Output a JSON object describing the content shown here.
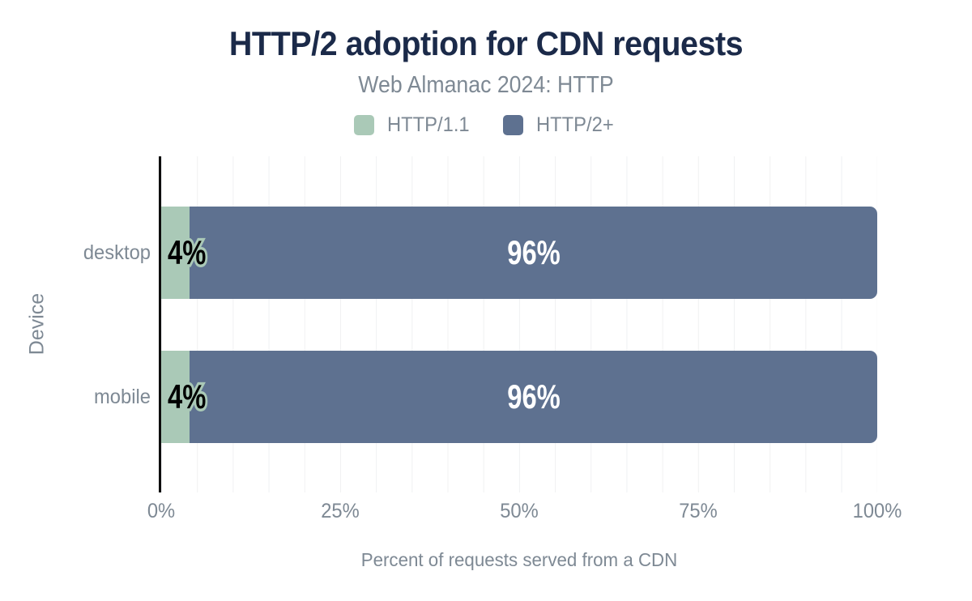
{
  "title": "HTTP/2 adoption for CDN requests",
  "subtitle": "Web Almanac 2024: HTTP",
  "colors": {
    "title_navy": "#1b2a49",
    "text_gray": "#7e8994",
    "http11_green": "#aac9b7",
    "http2_blue": "#5e7190",
    "gridline": "#f0f1f2",
    "axis": "#0d0d0d",
    "label_on_green": "#000000",
    "label_on_blue": "#ffffff"
  },
  "legend": {
    "items": [
      {
        "label": "HTTP/1.1",
        "color": "#aac9b7"
      },
      {
        "label": "HTTP/2+",
        "color": "#5e7190"
      }
    ]
  },
  "chart_data": {
    "type": "bar",
    "orientation": "horizontal",
    "stacked": true,
    "title": "HTTP/2 adoption for CDN requests",
    "subtitle": "Web Almanac 2024: HTTP",
    "categories": [
      "desktop",
      "mobile"
    ],
    "series": [
      {
        "name": "HTTP/1.1",
        "color": "#aac9b7",
        "values": [
          4,
          4
        ],
        "labels": [
          "4%",
          "4%"
        ]
      },
      {
        "name": "HTTP/2+",
        "color": "#5e7190",
        "values": [
          96,
          96
        ],
        "labels": [
          "96%",
          "96%"
        ]
      }
    ],
    "xlabel": "Percent of requests served from a CDN",
    "ylabel": "Device",
    "xlim": [
      0,
      100
    ],
    "xticks": [
      {
        "label": "0%",
        "pos": 0
      },
      {
        "label": "25%",
        "pos": 25
      },
      {
        "label": "50%",
        "pos": 50
      },
      {
        "label": "75%",
        "pos": 75
      },
      {
        "label": "100%",
        "pos": 100
      }
    ],
    "grid": "minor vertical gridlines every 5%",
    "legend_position": "top center"
  }
}
